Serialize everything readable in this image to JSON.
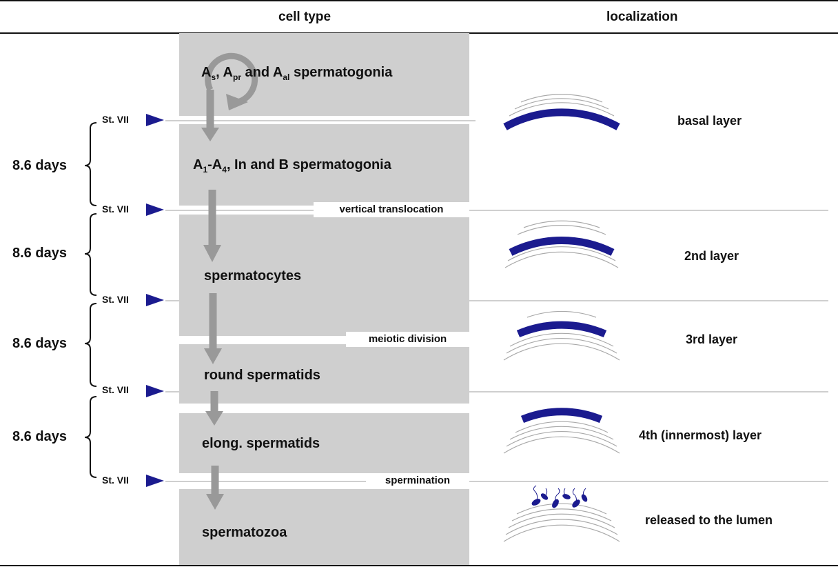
{
  "headers": {
    "cell_type": "cell type",
    "localization": "localization"
  },
  "cells": {
    "undifferentiated": {
      "a": "A",
      "s": "s",
      "apr": "A",
      "pr": "pr",
      "and_text": "and A",
      "al": "al",
      "rest": "spermatogonia",
      "sep1": ",",
      "sep2": ","
    },
    "differentiating": {
      "a1": "A",
      "sub1": "1",
      "dash": "-A",
      "sub4": "4",
      "rest": ", In and B spermatogonia"
    },
    "spermatocytes": "spermatocytes",
    "round": "round spermatids",
    "elong": "elong. spermatids",
    "spermatozoa": "spermatozoa"
  },
  "events": {
    "vertical": "vertical translocation",
    "meiotic": "meiotic division",
    "spermination": "spermination"
  },
  "stage_label": "St. VII",
  "duration_label": "8.6 days",
  "localization": {
    "basal": "basal layer",
    "second": "2nd layer",
    "third": "3rd layer",
    "fourth": "4th (innermost) layer",
    "lumen": "released to the lumen"
  },
  "colors": {
    "accent": "#1b1b8f",
    "panel": "#cfcfcf",
    "arrow": "#999999",
    "line": "#c8c8c8"
  }
}
